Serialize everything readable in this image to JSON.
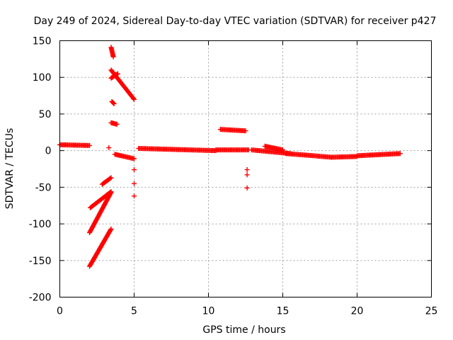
{
  "chart_data": {
    "type": "scatter",
    "title": "Day 249 of 2024, Sidereal Day-to-day VTEC variation (SDTVAR) for receiver p427",
    "xlabel": "GPS time / hours",
    "ylabel": "SDTVAR / TECUs",
    "xlim": [
      0,
      25
    ],
    "ylim": [
      -200,
      150
    ],
    "xticks": [
      0,
      5,
      10,
      15,
      20,
      25
    ],
    "yticks": [
      -200,
      -150,
      -100,
      -50,
      0,
      50,
      100,
      150
    ],
    "xtick_labels": [
      "0",
      "5",
      "10",
      "15",
      "20",
      "25"
    ],
    "ytick_labels": [
      "-200",
      "-150",
      "-100",
      "-50",
      "0",
      "50",
      "100",
      "150"
    ],
    "grid": true,
    "marker": "plus",
    "color": "#ff0000",
    "segments": [
      {
        "name": "arc-0-2h",
        "x": [
          0.0,
          2.0
        ],
        "y": [
          8,
          7
        ]
      },
      {
        "name": "arc-low-1",
        "x": [
          2.0,
          3.45
        ],
        "y": [
          -158,
          -107
        ]
      },
      {
        "name": "arc-low-2",
        "x": [
          2.0,
          3.45
        ],
        "y": [
          -112,
          -57
        ]
      },
      {
        "name": "arc-low-3",
        "x": [
          2.05,
          3.45
        ],
        "y": [
          -78,
          -56
        ]
      },
      {
        "name": "arc-low-4",
        "x": [
          2.85,
          3.45
        ],
        "y": [
          -46,
          -37
        ]
      },
      {
        "name": "arc-high-1",
        "x": [
          3.45,
          3.6
        ],
        "y": [
          141,
          128
        ]
      },
      {
        "name": "arc-high-2",
        "x": [
          3.45,
          5.0
        ],
        "y": [
          110,
          70
        ]
      },
      {
        "name": "arc-high-3",
        "x": [
          3.45,
          3.9
        ],
        "y": [
          99,
          105
        ]
      },
      {
        "name": "arc-mid-1",
        "x": [
          3.5,
          3.65
        ],
        "y": [
          67,
          64
        ]
      },
      {
        "name": "arc-mid-2",
        "x": [
          3.45,
          3.85
        ],
        "y": [
          38,
          36
        ]
      },
      {
        "name": "arc-near0",
        "x": [
          3.7,
          5.0
        ],
        "y": [
          -5,
          -11
        ]
      },
      {
        "name": "arc-main-1",
        "x": [
          5.3,
          10.5
        ],
        "y": [
          3,
          0
        ]
      },
      {
        "name": "arc-main-2",
        "x": [
          10.5,
          12.7
        ],
        "y": [
          1,
          1
        ]
      },
      {
        "name": "arc-bump",
        "x": [
          10.8,
          12.5
        ],
        "y": [
          29,
          27
        ]
      },
      {
        "name": "arc-tail-1",
        "x": [
          12.9,
          15.5
        ],
        "y": [
          1,
          -4
        ]
      },
      {
        "name": "arc-tail-2",
        "x": [
          13.8,
          15.0
        ],
        "y": [
          6,
          1
        ]
      },
      {
        "name": "arc-tail-3",
        "x": [
          15.2,
          18.3
        ],
        "y": [
          -4,
          -9
        ]
      },
      {
        "name": "arc-tail-4",
        "x": [
          18.3,
          20.0
        ],
        "y": [
          -9,
          -8
        ]
      },
      {
        "name": "arc-tail-5",
        "x": [
          20.0,
          22.9
        ],
        "y": [
          -7,
          -4
        ]
      }
    ],
    "isolated_points": [
      {
        "x": 3.3,
        "y": 4
      },
      {
        "x": 5.0,
        "y": -26
      },
      {
        "x": 5.0,
        "y": -45
      },
      {
        "x": 5.0,
        "y": -62
      },
      {
        "x": 12.6,
        "y": -26
      },
      {
        "x": 12.6,
        "y": -33
      },
      {
        "x": 12.6,
        "y": -51
      }
    ]
  }
}
